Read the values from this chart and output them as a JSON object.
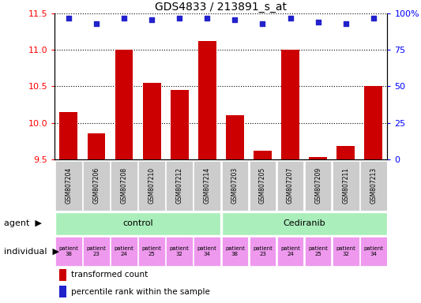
{
  "title": "GDS4833 / 213891_s_at",
  "samples": [
    "GSM807204",
    "GSM807206",
    "GSM807208",
    "GSM807210",
    "GSM807212",
    "GSM807214",
    "GSM807203",
    "GSM807205",
    "GSM807207",
    "GSM807209",
    "GSM807211",
    "GSM807213"
  ],
  "bar_values": [
    10.15,
    9.85,
    11.0,
    10.55,
    10.45,
    11.12,
    10.1,
    9.62,
    11.0,
    9.53,
    9.68,
    10.5
  ],
  "percentile_values": [
    97,
    93,
    97,
    96,
    97,
    97,
    96,
    93,
    97,
    94,
    93,
    97
  ],
  "ylim_left": [
    9.5,
    11.5
  ],
  "ylim_right": [
    0,
    100
  ],
  "yticks_left": [
    9.5,
    10.0,
    10.5,
    11.0,
    11.5
  ],
  "yticks_right": [
    0,
    25,
    50,
    75,
    100
  ],
  "bar_color": "#cc0000",
  "dot_color": "#2222cc",
  "control_color": "#aaeebb",
  "cediranib_color": "#aaeebb",
  "sample_bg_color": "#cccccc",
  "individual_color": "#ee99ee",
  "individual_labels": [
    "patient\n38",
    "patient\n23",
    "patient\n24",
    "patient\n25",
    "patient\n32",
    "patient\n34",
    "patient\n38",
    "patient\n23",
    "patient\n24",
    "patient\n25",
    "patient\n32",
    "patient\n34"
  ],
  "legend_bar_label": "transformed count",
  "legend_dot_label": "percentile rank within the sample",
  "agent_label": "agent",
  "individual_label": "individual",
  "agent_control_label": "control",
  "agent_cediranib_label": "Cediranib"
}
